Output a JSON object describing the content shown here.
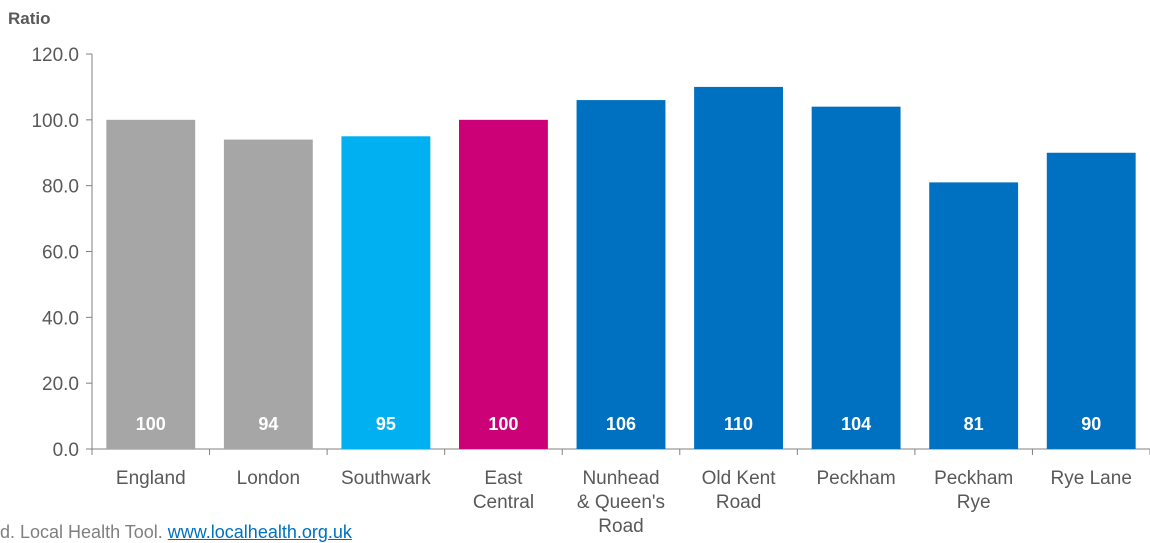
{
  "chart_data": {
    "type": "bar",
    "ylabel": "Ratio",
    "ylim": [
      0,
      120
    ],
    "y_ticks": [
      "0.0",
      "20.0",
      "40.0",
      "60.0",
      "80.0",
      "100.0",
      "120.0"
    ],
    "y_tick_values": [
      0,
      20,
      40,
      60,
      80,
      100,
      120
    ],
    "grid": false,
    "categories": [
      [
        "England"
      ],
      [
        "London"
      ],
      [
        "Southwark"
      ],
      [
        "East",
        "Central"
      ],
      [
        "Nunhead",
        "& Queen's",
        "Road"
      ],
      [
        "Old Kent",
        "Road"
      ],
      [
        "Peckham"
      ],
      [
        "Peckham",
        "Rye"
      ],
      [
        "Rye Lane"
      ]
    ],
    "values": [
      100,
      94,
      95,
      100,
      106,
      110,
      104,
      81,
      90
    ],
    "data_labels": [
      "100",
      "94",
      "95",
      "100",
      "106",
      "110",
      "104",
      "81",
      "90"
    ],
    "bar_colors": [
      "#a6a6a6",
      "#a6a6a6",
      "#00b0f0",
      "#cc0077",
      "#0070c0",
      "#0070c0",
      "#0070c0",
      "#0070c0",
      "#0070c0"
    ],
    "data_label_color": "#ffffff"
  },
  "footnote": {
    "text": "d. Local Health Tool. ",
    "link": "www.localhealth.org.uk"
  }
}
